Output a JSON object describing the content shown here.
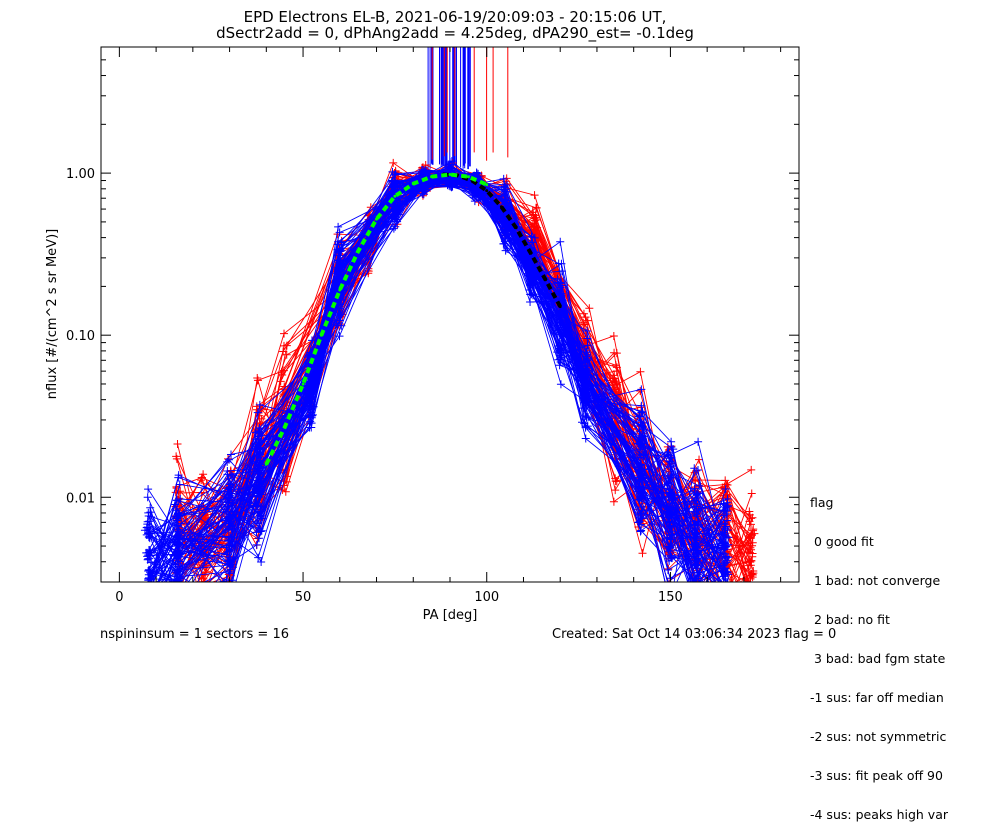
{
  "chart_data": {
    "type": "scatter",
    "title_lines": [
      "EPD Electrons EL-B, 2021-06-19/20:09:03 - 20:15:06 UT,",
      "dSectr2add = 0, dPhAng2add = 4.25deg, dPA290_est=  -0.1deg"
    ],
    "xlabel": "PA [deg]",
    "ylabel": "nflux [#/(cm^2 s sr MeV)]",
    "xlim": [
      -5,
      185
    ],
    "ylim": [
      0.003,
      6.0
    ],
    "yscale": "log",
    "x_ticks": [
      0,
      50,
      100,
      150
    ],
    "x_tick_labels": [
      "0",
      "50",
      "100",
      "150"
    ],
    "y_ticks": [
      0.01,
      0.1,
      1.0
    ],
    "y_tick_labels": [
      "0.01",
      "0.10",
      "1.00"
    ],
    "series": [
      {
        "color": "#0000ff",
        "x": [
          8,
          16,
          30,
          38,
          52,
          60,
          75,
          83,
          90,
          97,
          105,
          112,
          120,
          127,
          142,
          150,
          157,
          165
        ],
        "y": [
          0.004,
          0.005,
          0.007,
          0.013,
          0.05,
          0.22,
          0.7,
          0.9,
          0.95,
          0.85,
          0.55,
          0.27,
          0.13,
          0.05,
          0.016,
          0.008,
          0.005,
          0.004
        ]
      },
      {
        "color": "#ff0000",
        "x": [
          16,
          23,
          30,
          38,
          45,
          60,
          68,
          75,
          83,
          90,
          98,
          105,
          113,
          127,
          135,
          142,
          150,
          157,
          165,
          172
        ],
        "y": [
          0.006,
          0.006,
          0.007,
          0.015,
          0.03,
          0.2,
          0.4,
          0.75,
          0.9,
          0.95,
          0.85,
          0.6,
          0.4,
          0.07,
          0.03,
          0.015,
          0.008,
          0.006,
          0.005,
          0.004
        ]
      },
      {
        "color": "#00ff00",
        "x": [
          40,
          45,
          50,
          55,
          60,
          65,
          70,
          75,
          80,
          85,
          90,
          95,
          100
        ],
        "y": [
          0.016,
          0.027,
          0.05,
          0.1,
          0.19,
          0.33,
          0.52,
          0.72,
          0.86,
          0.95,
          0.98,
          0.95,
          0.85
        ]
      },
      {
        "color": "#000000",
        "x": [
          88,
          92,
          96,
          100,
          104,
          108,
          112,
          116,
          120
        ],
        "y": [
          0.98,
          0.97,
          0.9,
          0.78,
          0.62,
          0.46,
          0.32,
          0.22,
          0.15
        ]
      }
    ],
    "legend_placement": "right-outside-bottom"
  },
  "legend": {
    "heading": "flag",
    "items": [
      " 0 good fit",
      " 1 bad: not converge",
      " 2 bad: no fit",
      " 3 bad: bad fgm state",
      "-1 sus: far off median",
      "-2 sus: not symmetric",
      "-3 sus: fit peak off 90",
      "-4 sus: peaks high var"
    ]
  },
  "footer": {
    "left": "nspininsum =  1  sectors = 16",
    "right": "Created: Sat Oct 14 03:06:34 2023   flag = 0"
  },
  "colors": {
    "blue": "#0000ff",
    "red": "#ff0000",
    "green": "#00ff00",
    "black": "#000000"
  }
}
